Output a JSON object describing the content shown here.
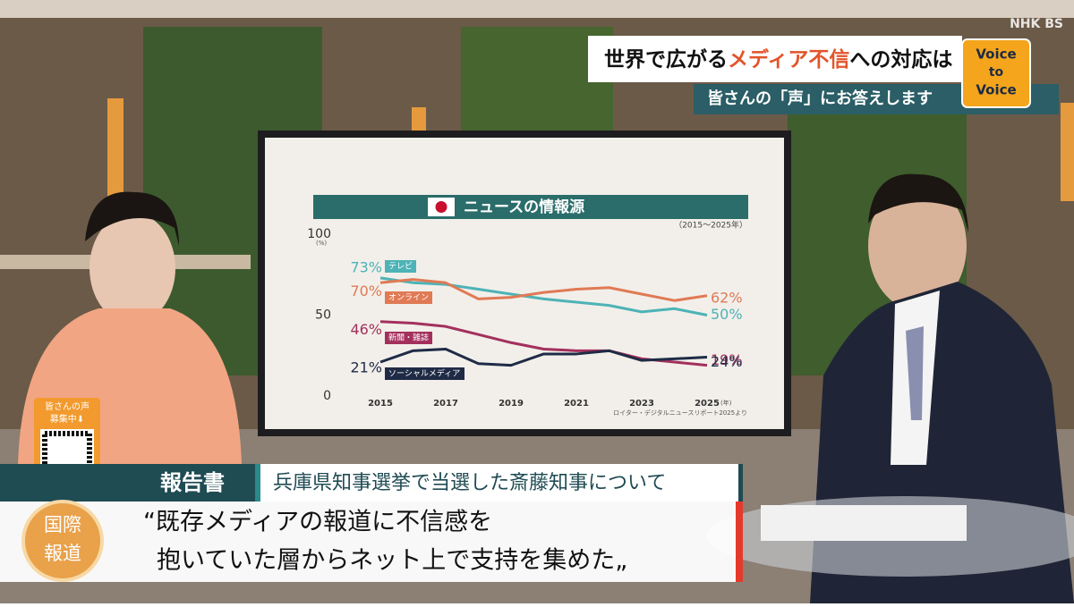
{
  "header": {
    "logo": "NHK BS",
    "title_parts": [
      "世界で広がる",
      "メディア不信",
      "への対応は"
    ],
    "subtitle": "皆さんの「声」にお答えします",
    "badge": [
      "Voice",
      "to",
      "Voice"
    ]
  },
  "chart_data": {
    "type": "line",
    "title": "ニュースの情報源",
    "subtitle": "（2015～2025年）",
    "y_unit": "(%)",
    "x_unit": "(年)",
    "source": "ロイター・デジタルニュースリポート2025より",
    "x": [
      2015,
      2016,
      2017,
      2018,
      2019,
      2020,
      2021,
      2022,
      2023,
      2024,
      2025
    ],
    "xlim": [
      2015,
      2025
    ],
    "xticks": [
      2015,
      2017,
      2019,
      2021,
      2023,
      2025
    ],
    "ylim": [
      0,
      100
    ],
    "yticks": [
      0,
      50,
      100
    ],
    "grid": false,
    "series": [
      {
        "name": "テレビ",
        "color": "#4db3b6",
        "values": [
          73,
          70,
          69,
          66,
          63,
          60,
          58,
          56,
          52,
          54,
          50
        ],
        "value_labels": [
          "73%",
          null,
          null,
          null,
          null,
          null,
          null,
          null,
          null,
          null,
          "50%"
        ]
      },
      {
        "name": "オンライン",
        "color": "#e07a55",
        "values": [
          70,
          72,
          70,
          60,
          61,
          64,
          66,
          67,
          63,
          59,
          62
        ],
        "value_labels": [
          "70%",
          null,
          null,
          null,
          null,
          null,
          null,
          null,
          null,
          null,
          "62%"
        ]
      },
      {
        "name": "新聞・雑誌",
        "color": "#a3305c",
        "values": [
          46,
          45,
          43,
          38,
          33,
          29,
          28,
          28,
          23,
          21,
          19
        ],
        "value_labels": [
          "46%",
          null,
          null,
          null,
          null,
          null,
          null,
          null,
          null,
          null,
          "19%"
        ]
      },
      {
        "name": "ソーシャルメディア",
        "color": "#1f2b46",
        "values": [
          21,
          28,
          29,
          20,
          19,
          26,
          26,
          28,
          22,
          23,
          24
        ],
        "value_labels": [
          "21%",
          null,
          null,
          null,
          null,
          null,
          null,
          null,
          null,
          null,
          "24%"
        ]
      }
    ]
  },
  "program": {
    "qr_caption": [
      "皆さんの声",
      "募集中⬇"
    ],
    "logo": [
      "国際",
      "報道"
    ]
  },
  "lower_third": {
    "label": "報告書",
    "headline": "兵庫県知事選挙で当選した斎藤知事について",
    "quote": [
      "“既存メディアの報道に不信感を",
      "抱いていた層からネット上で支持を集めた„"
    ]
  }
}
